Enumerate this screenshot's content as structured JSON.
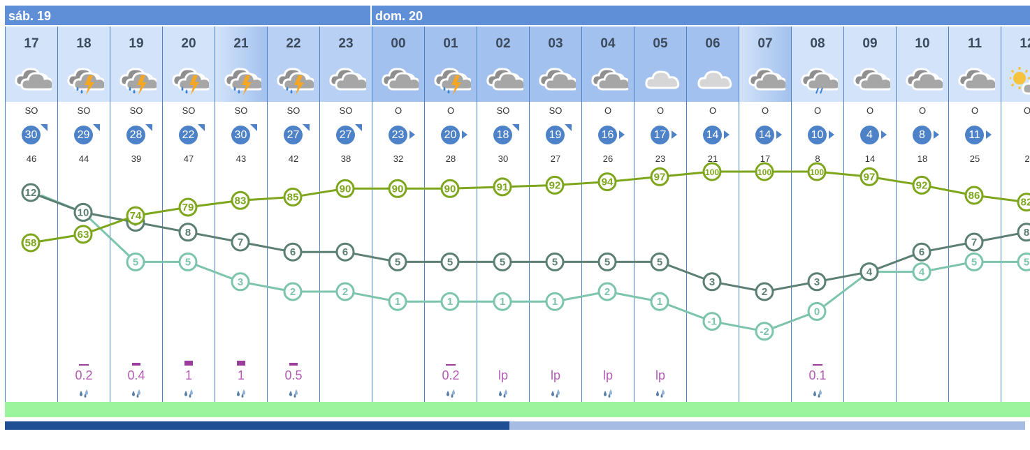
{
  "days": [
    {
      "label": "sáb. 19",
      "start": 0,
      "span": 7
    },
    {
      "label": "dom. 20",
      "start": 7,
      "span": 13
    }
  ],
  "colors": {
    "header": "#5f8fd6",
    "badge": "#4d82c9",
    "humidity": "#7da61c",
    "temp": "#5b7f73",
    "dew": "#7cc4ad",
    "precip": "#b35ab3",
    "precip_bar": "#9b3d9b",
    "bg_light": "#d3e3f9",
    "bg_mid": "#b8d0f3",
    "bg_dark": "#a3c1ee"
  },
  "hours": [
    {
      "hour": "17",
      "icon": "cloud-icon",
      "dir": "SO",
      "wind": "30",
      "arrow": "ne",
      "gust": "46",
      "precip": "",
      "bar": 0,
      "bg": "light"
    },
    {
      "hour": "18",
      "icon": "storm-icon",
      "dir": "SO",
      "wind": "29",
      "arrow": "ne",
      "gust": "44",
      "precip": "0.2",
      "bar": 1,
      "bg": "light"
    },
    {
      "hour": "19",
      "icon": "storm-icon",
      "dir": "SO",
      "wind": "28",
      "arrow": "ne",
      "gust": "39",
      "precip": "0.4",
      "bar": 2,
      "bg": "light"
    },
    {
      "hour": "20",
      "icon": "storm-icon",
      "dir": "SO",
      "wind": "22",
      "arrow": "ne",
      "gust": "47",
      "precip": "1",
      "bar": 3,
      "bg": "light"
    },
    {
      "hour": "21",
      "icon": "storm-icon",
      "dir": "SO",
      "wind": "30",
      "arrow": "ne",
      "gust": "43",
      "precip": "1",
      "bar": 3,
      "bg": "gradient"
    },
    {
      "hour": "22",
      "icon": "storm-icon",
      "dir": "SO",
      "wind": "27",
      "arrow": "ne",
      "gust": "42",
      "precip": "0.5",
      "bar": 2,
      "bg": "mid"
    },
    {
      "hour": "23",
      "icon": "cloud-icon",
      "dir": "SO",
      "wind": "27",
      "arrow": "ne",
      "gust": "38",
      "precip": "",
      "bar": 0,
      "bg": "mid"
    },
    {
      "hour": "00",
      "icon": "cloud-icon",
      "dir": "O",
      "wind": "23",
      "arrow": "e",
      "gust": "32",
      "precip": "",
      "bar": 0,
      "bg": "dark"
    },
    {
      "hour": "01",
      "icon": "storm-icon",
      "dir": "O",
      "wind": "20",
      "arrow": "e",
      "gust": "28",
      "precip": "0.2",
      "bar": 1,
      "bg": "dark"
    },
    {
      "hour": "02",
      "icon": "cloud-icon",
      "dir": "SO",
      "wind": "18",
      "arrow": "ne",
      "gust": "30",
      "precip": "lp",
      "bar": 0,
      "bg": "dark"
    },
    {
      "hour": "03",
      "icon": "cloud-icon",
      "dir": "SO",
      "wind": "19",
      "arrow": "ne",
      "gust": "27",
      "precip": "lp",
      "bar": 0,
      "bg": "dark"
    },
    {
      "hour": "04",
      "icon": "cloud-icon",
      "dir": "O",
      "wind": "16",
      "arrow": "e",
      "gust": "26",
      "precip": "lp",
      "bar": 0,
      "bg": "dark"
    },
    {
      "hour": "05",
      "icon": "light-cloud-icon",
      "dir": "O",
      "wind": "17",
      "arrow": "e",
      "gust": "23",
      "precip": "lp",
      "bar": 0,
      "bg": "dark"
    },
    {
      "hour": "06",
      "icon": "light-cloud-icon",
      "dir": "O",
      "wind": "14",
      "arrow": "e",
      "gust": "21",
      "precip": "",
      "bar": 0,
      "bg": "dark"
    },
    {
      "hour": "07",
      "icon": "cloud-icon",
      "dir": "O",
      "wind": "14",
      "arrow": "e",
      "gust": "17",
      "precip": "",
      "bar": 0,
      "bg": "gradient"
    },
    {
      "hour": "08",
      "icon": "rain-icon",
      "dir": "O",
      "wind": "10",
      "arrow": "e",
      "gust": "8",
      "precip": "0.1",
      "bar": 1,
      "bg": "light"
    },
    {
      "hour": "09",
      "icon": "cloud-icon",
      "dir": "O",
      "wind": "4",
      "arrow": "e",
      "gust": "14",
      "precip": "",
      "bar": 0,
      "bg": "light"
    },
    {
      "hour": "10",
      "icon": "cloud-icon",
      "dir": "O",
      "wind": "8",
      "arrow": "e",
      "gust": "18",
      "precip": "",
      "bar": 0,
      "bg": "light"
    },
    {
      "hour": "11",
      "icon": "cloud-icon",
      "dir": "O",
      "wind": "11",
      "arrow": "e",
      "gust": "25",
      "precip": "",
      "bar": 0,
      "bg": "light"
    },
    {
      "hour": "12",
      "icon": "sun-icon",
      "dir": "O",
      "wind": "",
      "arrow": "",
      "gust": "2",
      "precip": "",
      "bar": 0,
      "bg": "light"
    }
  ],
  "chart_data": {
    "type": "line",
    "x": [
      "17",
      "18",
      "19",
      "20",
      "21",
      "22",
      "23",
      "00",
      "01",
      "02",
      "03",
      "04",
      "05",
      "06",
      "07",
      "08",
      "09",
      "10",
      "11",
      "12"
    ],
    "series": [
      {
        "key": "humidity",
        "values": [
          58,
          63,
          74,
          79,
          83,
          85,
          90,
          90,
          90,
          91,
          92,
          94,
          97,
          100,
          100,
          100,
          97,
          92,
          86,
          82
        ]
      },
      {
        "key": "temp",
        "values": [
          12,
          10,
          9,
          8,
          7,
          6,
          6,
          5,
          5,
          5,
          5,
          5,
          5,
          3,
          2,
          3,
          4,
          6,
          7,
          8
        ]
      },
      {
        "key": "dew",
        "values": [
          null,
          10,
          5,
          5,
          3,
          2,
          2,
          1,
          1,
          1,
          1,
          2,
          1,
          -1,
          -2,
          0,
          4,
          4,
          5,
          5
        ]
      }
    ]
  }
}
